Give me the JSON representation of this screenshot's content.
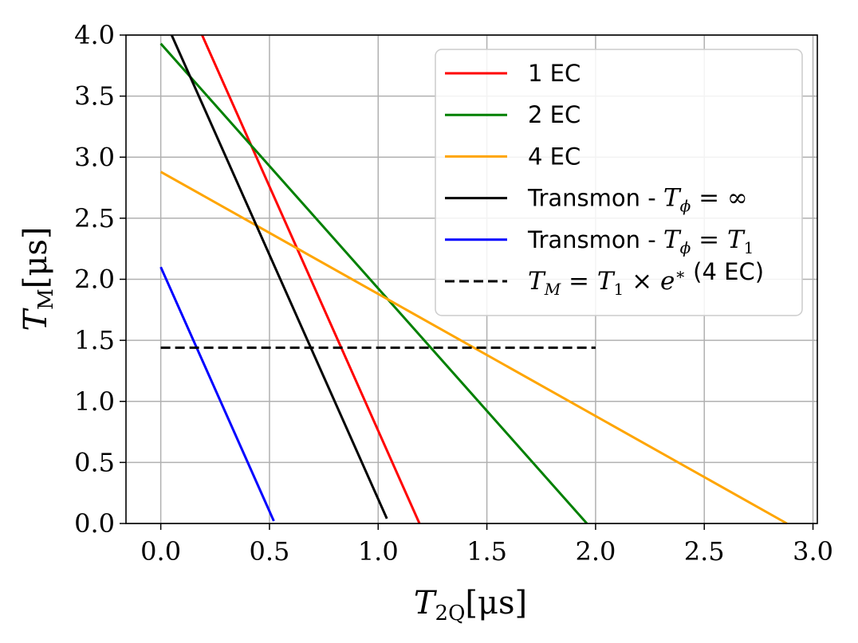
{
  "chart_data": {
    "type": "line",
    "xlabel": {
      "symbol": "T",
      "subscript": "2Q",
      "unit": "[μs]"
    },
    "ylabel": {
      "symbol": "T",
      "subscript": "M",
      "unit": "[μs]"
    },
    "xlim": [
      -0.16,
      3.02
    ],
    "ylim": [
      0.0,
      4.0
    ],
    "xticks": [
      0.0,
      0.5,
      1.0,
      1.5,
      2.0,
      2.5,
      3.0
    ],
    "xtick_labels": [
      "0.0",
      "0.5",
      "1.0",
      "1.5",
      "2.0",
      "2.5",
      "3.0"
    ],
    "yticks": [
      0.0,
      0.5,
      1.0,
      1.5,
      2.0,
      2.5,
      3.0,
      3.5,
      4.0
    ],
    "ytick_labels": [
      "0.0",
      "0.5",
      "1.0",
      "1.5",
      "2.0",
      "2.5",
      "3.0",
      "3.5",
      "4.0"
    ],
    "grid": true,
    "legend_position": "top-right",
    "series": [
      {
        "name": "1 EC",
        "color": "#ff0000",
        "style": "solid",
        "legend": {
          "text": "1 EC"
        },
        "x": [
          0.19,
          1.19
        ],
        "y": [
          4.0,
          0.0
        ]
      },
      {
        "name": "2 EC",
        "color": "#008000",
        "style": "solid",
        "legend": {
          "text": "2 EC"
        },
        "x": [
          0.0,
          1.96
        ],
        "y": [
          3.93,
          0.0
        ]
      },
      {
        "name": "4 EC",
        "color": "#ffa500",
        "style": "solid",
        "legend": {
          "text": "4 EC"
        },
        "x": [
          0.0,
          2.88
        ],
        "y": [
          2.88,
          0.0
        ]
      },
      {
        "name": "Transmon - T_phi = inf",
        "color": "#000000",
        "style": "solid",
        "legend": {
          "text": "Transmon - ",
          "math_symbol": "T",
          "math_sub": "ϕ",
          "math_rest": " = ∞"
        },
        "x": [
          0.05,
          1.04
        ],
        "y": [
          4.0,
          0.04
        ]
      },
      {
        "name": "Transmon - T_phi = T_1",
        "color": "#0000ff",
        "style": "solid",
        "legend": {
          "text": "Transmon - ",
          "math_symbol": "T",
          "math_sub": "ϕ",
          "math_rest": " = ",
          "math_symbol2": "T",
          "math_sub2": "1"
        },
        "x": [
          0.0,
          0.52
        ],
        "y": [
          2.1,
          0.02
        ]
      },
      {
        "name": "T_M = T_1 x e* (4 EC)",
        "color": "#000000",
        "style": "dashed",
        "legend": {
          "math_symbol": "T",
          "math_sub": "M",
          "math_rest": " = ",
          "math_symbol2": "T",
          "math_sub2": "1",
          "math_rest2": " × ",
          "math_symbol3": "e",
          "math_sup3": "∗",
          "text": " (4 EC)"
        },
        "x": [
          0.0,
          2.0
        ],
        "y": [
          1.44,
          1.44
        ]
      }
    ]
  }
}
